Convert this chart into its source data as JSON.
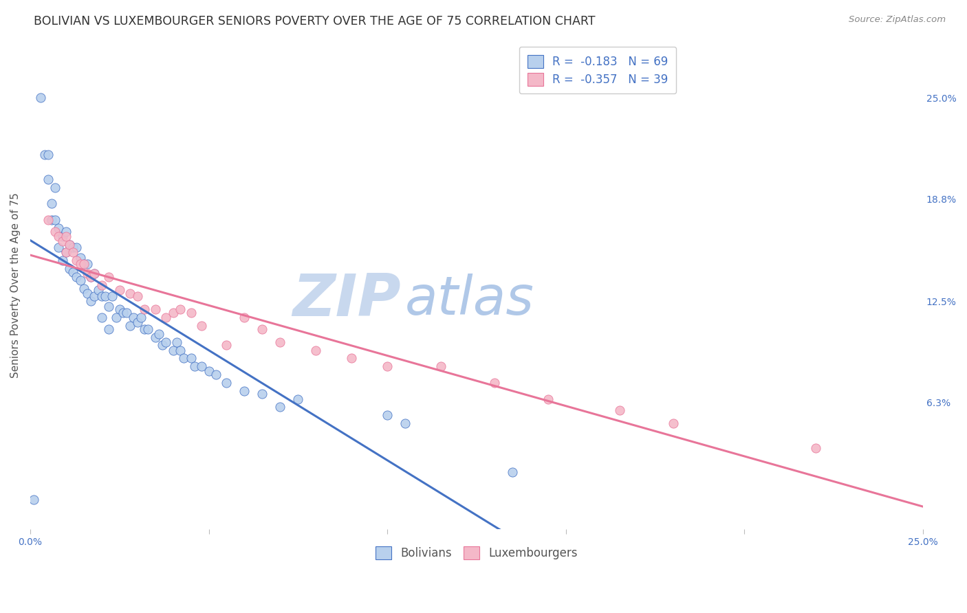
{
  "title": "BOLIVIAN VS LUXEMBOURGER SENIORS POVERTY OVER THE AGE OF 75 CORRELATION CHART",
  "source": "Source: ZipAtlas.com",
  "ylabel": "Seniors Poverty Over the Age of 75",
  "right_yticks": [
    "25.0%",
    "18.8%",
    "12.5%",
    "6.3%"
  ],
  "right_ytick_values": [
    0.25,
    0.188,
    0.125,
    0.063
  ],
  "xmin": 0.0,
  "xmax": 0.25,
  "ymin": -0.015,
  "ymax": 0.285,
  "legend_blue_label": "R =  -0.183   N = 69",
  "legend_pink_label": "R =  -0.357   N = 39",
  "bolivians_x": [
    0.001,
    0.003,
    0.004,
    0.005,
    0.005,
    0.006,
    0.006,
    0.007,
    0.007,
    0.008,
    0.008,
    0.009,
    0.009,
    0.01,
    0.01,
    0.011,
    0.011,
    0.012,
    0.012,
    0.013,
    0.013,
    0.014,
    0.014,
    0.015,
    0.015,
    0.016,
    0.016,
    0.017,
    0.017,
    0.018,
    0.018,
    0.019,
    0.02,
    0.02,
    0.021,
    0.022,
    0.022,
    0.023,
    0.024,
    0.025,
    0.026,
    0.027,
    0.028,
    0.029,
    0.03,
    0.031,
    0.032,
    0.033,
    0.035,
    0.036,
    0.037,
    0.038,
    0.04,
    0.041,
    0.042,
    0.043,
    0.045,
    0.046,
    0.048,
    0.05,
    0.052,
    0.055,
    0.06,
    0.065,
    0.07,
    0.075,
    0.1,
    0.105,
    0.135
  ],
  "bolivians_y": [
    0.003,
    0.25,
    0.215,
    0.215,
    0.2,
    0.185,
    0.175,
    0.195,
    0.175,
    0.17,
    0.158,
    0.165,
    0.15,
    0.168,
    0.155,
    0.16,
    0.145,
    0.158,
    0.143,
    0.158,
    0.14,
    0.152,
    0.138,
    0.148,
    0.133,
    0.148,
    0.13,
    0.14,
    0.125,
    0.142,
    0.128,
    0.132,
    0.128,
    0.115,
    0.128,
    0.122,
    0.108,
    0.128,
    0.115,
    0.12,
    0.118,
    0.118,
    0.11,
    0.115,
    0.112,
    0.115,
    0.108,
    0.108,
    0.103,
    0.105,
    0.098,
    0.1,
    0.095,
    0.1,
    0.095,
    0.09,
    0.09,
    0.085,
    0.085,
    0.082,
    0.08,
    0.075,
    0.07,
    0.068,
    0.06,
    0.065,
    0.055,
    0.05,
    0.02
  ],
  "luxembourgers_x": [
    0.005,
    0.007,
    0.008,
    0.009,
    0.01,
    0.01,
    0.011,
    0.012,
    0.013,
    0.014,
    0.015,
    0.016,
    0.017,
    0.018,
    0.02,
    0.022,
    0.025,
    0.028,
    0.03,
    0.032,
    0.035,
    0.038,
    0.04,
    0.042,
    0.045,
    0.048,
    0.055,
    0.06,
    0.065,
    0.07,
    0.08,
    0.09,
    0.1,
    0.115,
    0.13,
    0.145,
    0.165,
    0.18,
    0.22
  ],
  "luxembourgers_y": [
    0.175,
    0.168,
    0.165,
    0.162,
    0.165,
    0.155,
    0.16,
    0.155,
    0.15,
    0.148,
    0.148,
    0.142,
    0.14,
    0.142,
    0.135,
    0.14,
    0.132,
    0.13,
    0.128,
    0.12,
    0.12,
    0.115,
    0.118,
    0.12,
    0.118,
    0.11,
    0.098,
    0.115,
    0.108,
    0.1,
    0.095,
    0.09,
    0.085,
    0.085,
    0.075,
    0.065,
    0.058,
    0.05,
    0.035
  ],
  "blue_scatter_color": "#b8d0ed",
  "pink_scatter_color": "#f4b8c8",
  "blue_line_color": "#4472c4",
  "pink_line_color": "#e87599",
  "blue_dashed_color": "#9ab8de",
  "watermark_zip_color": "#c8d8ee",
  "watermark_atlas_color": "#b0c8e8",
  "background_color": "#ffffff",
  "grid_color": "#d8d8d8",
  "title_color": "#333333",
  "axis_label_color": "#555555",
  "right_tick_color": "#4472c4",
  "bottom_tick_color": "#4472c4",
  "source_color": "#888888"
}
